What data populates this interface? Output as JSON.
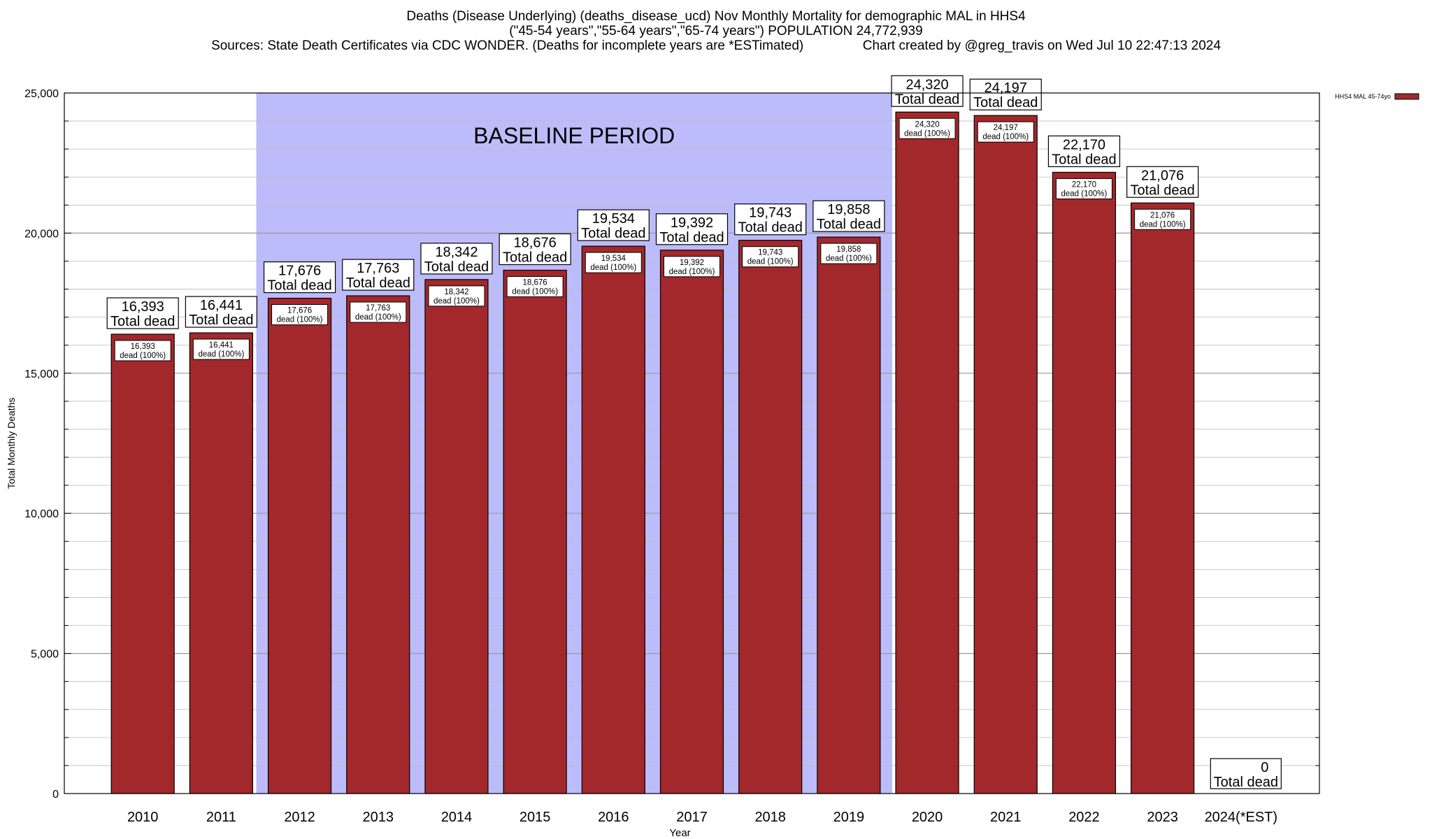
{
  "titles": {
    "line1": "Deaths (Disease Underlying) (deaths_disease_ucd) Nov Monthly Mortality for demographic MAL in HHS4",
    "line2": "(\"45-54 years\",\"55-64 years\",\"65-74 years\") POPULATION 24,772,939",
    "line3": "Sources: State Death Certificates via CDC WONDER. (Deaths for incomplete years are *ESTimated)                Chart created by @greg_travis on Wed Jul 10 22:47:13 2024"
  },
  "colors": {
    "bar": "#a3282b",
    "baseline_shade": "#bcbcfa",
    "grid": "#bbbbbb"
  },
  "chart_data": {
    "type": "bar",
    "categories": [
      "2010",
      "2011",
      "2012",
      "2013",
      "2014",
      "2015",
      "2016",
      "2017",
      "2018",
      "2019",
      "2020",
      "2021",
      "2022",
      "2023",
      "2024(*EST)"
    ],
    "series": [
      {
        "name": "HHS4 MAL 45-74yo",
        "values": [
          16393,
          16441,
          17676,
          17763,
          18342,
          18676,
          19534,
          19392,
          19743,
          19858,
          24320,
          24197,
          22170,
          21076,
          0
        ],
        "value_labels": [
          "16,393",
          "16,441",
          "17,676",
          "17,763",
          "18,342",
          "18,676",
          "19,534",
          "19,392",
          "19,743",
          "19,858",
          "24,320",
          "24,197",
          "22,170",
          "21,076",
          "0"
        ],
        "inner_labels": [
          "dead (100%)",
          "dead (100%)",
          "dead (100%)",
          "dead (100%)",
          "dead (100%)",
          "dead (100%)",
          "dead (100%)",
          "dead (100%)",
          "dead (100%)",
          "dead (100%)",
          "dead (100%)",
          "dead (100%)",
          "dead (100%)",
          "dead (100%)",
          ""
        ]
      }
    ],
    "total_label": "Total dead",
    "ylabel": "Total Monthly Deaths",
    "xlabel": "Year",
    "ylim": [
      0,
      25000
    ],
    "yticks": [
      0,
      5000,
      10000,
      15000,
      20000,
      25000
    ],
    "ytick_labels": [
      "0",
      "5,000",
      "10,000",
      "15,000",
      "20,000",
      "25,000"
    ],
    "baseline_period": {
      "label": "BASELINE PERIOD",
      "from": "2012",
      "to": "2019"
    },
    "legend": {
      "label": "HHS4 MAL 45-74yo",
      "placement": "top-right"
    },
    "grid": true
  }
}
